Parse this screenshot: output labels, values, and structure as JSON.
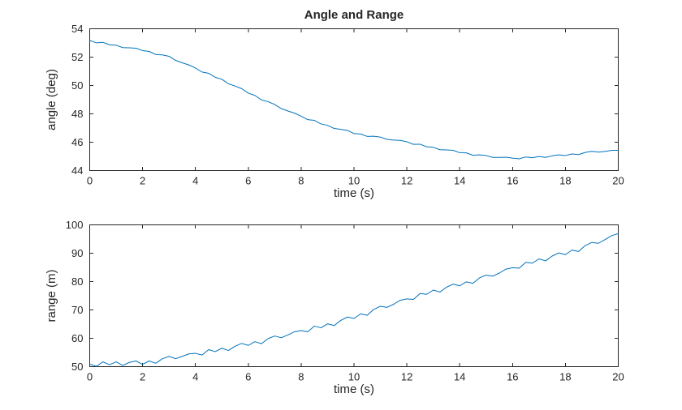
{
  "figure": {
    "background": "#ffffff",
    "axis_color": "#262626"
  },
  "chart_data": [
    {
      "type": "line",
      "title": "Angle and Range",
      "xlabel": "time (s)",
      "ylabel": "angle (deg)",
      "xlim": [
        0,
        20
      ],
      "ylim": [
        44,
        54
      ],
      "xticks": [
        0,
        2,
        4,
        6,
        8,
        10,
        12,
        14,
        16,
        18,
        20
      ],
      "yticks": [
        44,
        46,
        48,
        50,
        52,
        54
      ],
      "grid": false,
      "line_color": "#0072BD",
      "x_start": 0,
      "x_step": 0.25,
      "values": [
        53.18,
        53.01,
        53.04,
        52.87,
        52.84,
        52.67,
        52.66,
        52.63,
        52.46,
        52.4,
        52.18,
        52.16,
        52.06,
        51.77,
        51.6,
        51.45,
        51.23,
        50.95,
        50.86,
        50.58,
        50.44,
        50.12,
        49.96,
        49.78,
        49.46,
        49.3,
        48.98,
        48.86,
        48.66,
        48.37,
        48.2,
        48.05,
        47.83,
        47.59,
        47.54,
        47.29,
        47.19,
        46.97,
        46.91,
        46.83,
        46.61,
        46.58,
        46.41,
        46.42,
        46.36,
        46.2,
        46.15,
        46.13,
        46.03,
        45.85,
        45.86,
        45.68,
        45.64,
        45.47,
        45.46,
        45.43,
        45.26,
        45.25,
        45.08,
        45.11,
        45.06,
        44.93,
        44.93,
        44.94,
        44.88,
        44.83,
        44.96,
        44.91,
        44.99,
        44.93,
        45.04,
        45.11,
        45.06,
        45.17,
        45.13,
        45.28,
        45.36,
        45.3,
        45.35,
        45.43,
        45.43
      ]
    },
    {
      "type": "line",
      "title": "",
      "xlabel": "time (s)",
      "ylabel": "range (m)",
      "xlim": [
        0,
        20
      ],
      "ylim": [
        50,
        100
      ],
      "xticks": [
        0,
        2,
        4,
        6,
        8,
        10,
        12,
        14,
        16,
        18,
        20
      ],
      "yticks": [
        50,
        60,
        70,
        80,
        90,
        100
      ],
      "grid": false,
      "line_color": "#0072BD",
      "x_start": 0,
      "x_step": 0.25,
      "values": [
        50.9,
        50.1,
        51.7,
        50.7,
        51.7,
        50.4,
        51.5,
        52.0,
        50.8,
        52.0,
        51.2,
        52.8,
        53.6,
        52.8,
        53.6,
        54.5,
        54.7,
        54.1,
        56.0,
        55.3,
        56.5,
        55.7,
        57.2,
        58.2,
        57.5,
        58.8,
        58.1,
        59.9,
        60.8,
        60.2,
        61.2,
        62.3,
        62.7,
        62.3,
        64.3,
        63.7,
        65.1,
        64.5,
        66.3,
        67.5,
        67.0,
        68.6,
        68.1,
        70.2,
        71.3,
        70.9,
        72.0,
        73.4,
        73.9,
        73.7,
        75.8,
        75.5,
        77.0,
        76.3,
        78.0,
        79.1,
        78.5,
        79.9,
        79.4,
        81.3,
        82.3,
        81.9,
        83.0,
        84.4,
        84.9,
        84.7,
        86.8,
        86.5,
        88.0,
        87.3,
        89.0,
        90.1,
        89.5,
        91.1,
        90.6,
        92.7,
        93.8,
        93.5,
        94.8,
        96.2,
        96.9
      ]
    }
  ]
}
